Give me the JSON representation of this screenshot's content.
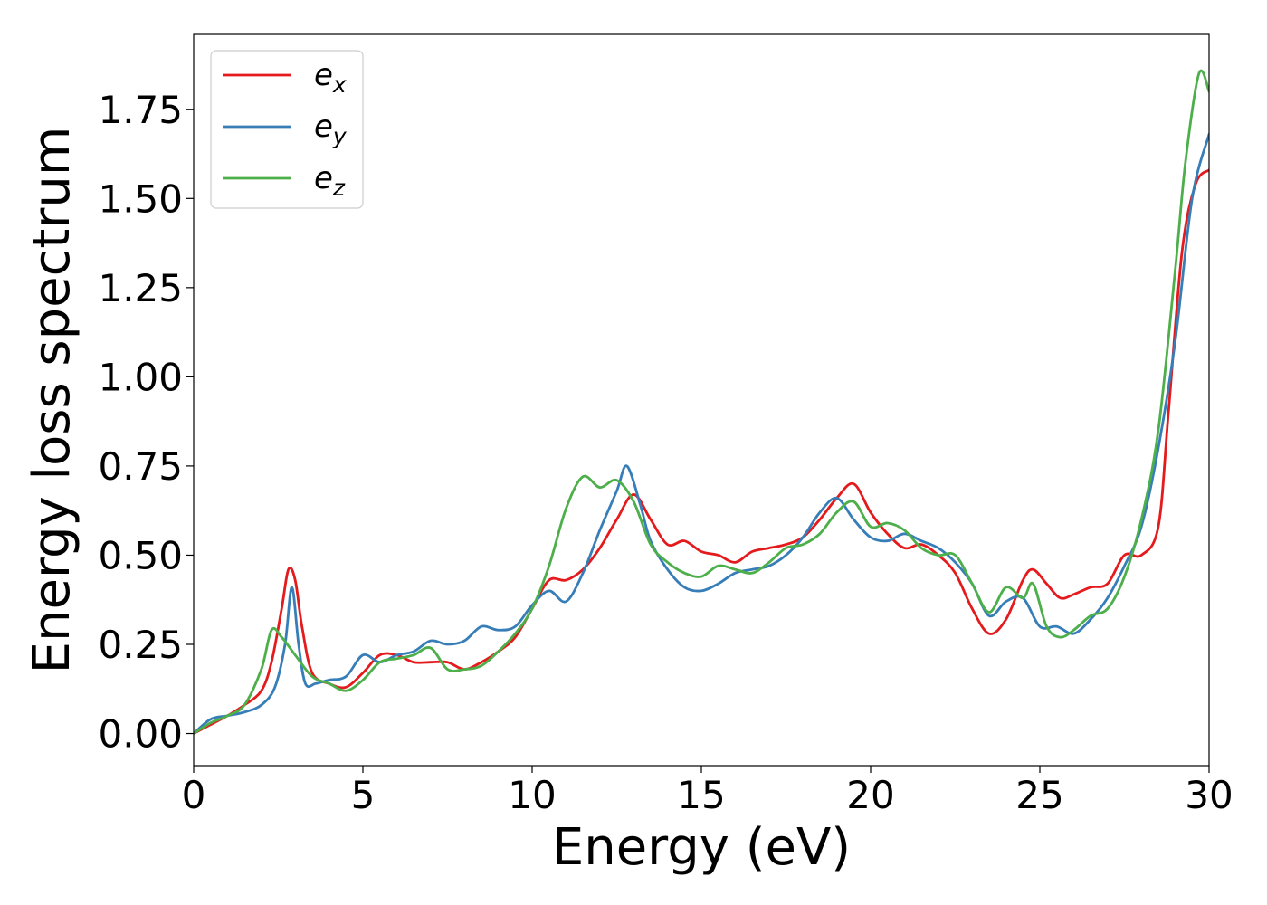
{
  "chart_data": {
    "type": "line",
    "xlabel": "Energy (eV)",
    "ylabel": "Energy loss spectrum",
    "xlim": [
      0,
      30
    ],
    "ylim": [
      -0.09,
      1.96
    ],
    "xticks": [
      0,
      5,
      10,
      15,
      20,
      25,
      30
    ],
    "xtick_labels": [
      "0",
      "5",
      "10",
      "15",
      "20",
      "25",
      "30"
    ],
    "yticks": [
      0,
      0.25,
      0.5,
      0.75,
      1.0,
      1.25,
      1.5,
      1.75
    ],
    "ytick_labels": [
      "0.00",
      "0.25",
      "0.50",
      "0.75",
      "1.00",
      "1.25",
      "1.50",
      "1.75"
    ],
    "grid": false,
    "legend_position": "top-left",
    "series": [
      {
        "name": "e_x",
        "legend_base": "e",
        "legend_sub": "x",
        "color": "#e41a1c",
        "x": [
          0,
          0.5,
          1,
          1.5,
          2,
          2.3,
          2.6,
          2.8,
          3.0,
          3.2,
          3.5,
          4,
          4.5,
          5,
          5.5,
          6,
          6.5,
          7,
          7.5,
          8,
          8.5,
          9,
          9.5,
          10,
          10.5,
          11,
          11.5,
          12,
          12.5,
          13,
          13.5,
          14,
          14.5,
          15,
          15.5,
          16,
          16.5,
          17,
          17.5,
          18,
          18.5,
          19,
          19.5,
          20,
          20.5,
          21,
          21.5,
          22,
          22.5,
          23,
          23.5,
          24,
          24.5,
          24.8,
          25.2,
          25.6,
          26,
          26.5,
          27,
          27.5,
          28,
          28.5,
          28.8,
          29.2,
          29.6,
          30
        ],
        "y": [
          0,
          0.025,
          0.05,
          0.08,
          0.12,
          0.2,
          0.35,
          0.46,
          0.43,
          0.3,
          0.17,
          0.14,
          0.13,
          0.17,
          0.22,
          0.22,
          0.2,
          0.2,
          0.2,
          0.18,
          0.2,
          0.23,
          0.27,
          0.35,
          0.43,
          0.43,
          0.46,
          0.52,
          0.6,
          0.67,
          0.6,
          0.53,
          0.54,
          0.51,
          0.5,
          0.48,
          0.51,
          0.52,
          0.53,
          0.55,
          0.6,
          0.66,
          0.7,
          0.62,
          0.56,
          0.52,
          0.53,
          0.5,
          0.45,
          0.35,
          0.28,
          0.32,
          0.43,
          0.46,
          0.42,
          0.38,
          0.39,
          0.41,
          0.42,
          0.5,
          0.5,
          0.58,
          0.9,
          1.35,
          1.54,
          1.58
        ]
      },
      {
        "name": "e_y",
        "legend_base": "e",
        "legend_sub": "y",
        "color": "#377eb8",
        "x": [
          0,
          0.5,
          1,
          1.5,
          2,
          2.4,
          2.7,
          2.9,
          3.1,
          3.3,
          3.6,
          4,
          4.5,
          5,
          5.5,
          6,
          6.5,
          7,
          7.5,
          8,
          8.5,
          9,
          9.5,
          10,
          10.5,
          11,
          11.5,
          12,
          12.5,
          12.8,
          13.2,
          13.5,
          14,
          14.5,
          15,
          15.5,
          16,
          16.5,
          17,
          17.5,
          18,
          18.5,
          19,
          19.5,
          20,
          20.5,
          21,
          21.5,
          22,
          22.5,
          23,
          23.5,
          24,
          24.5,
          25,
          25.5,
          26,
          26.5,
          27,
          27.5,
          28,
          28.5,
          29,
          29.5,
          30
        ],
        "y": [
          0,
          0.04,
          0.05,
          0.06,
          0.08,
          0.13,
          0.25,
          0.41,
          0.25,
          0.14,
          0.14,
          0.15,
          0.16,
          0.22,
          0.2,
          0.22,
          0.23,
          0.26,
          0.25,
          0.26,
          0.3,
          0.29,
          0.3,
          0.36,
          0.4,
          0.37,
          0.45,
          0.57,
          0.68,
          0.75,
          0.64,
          0.54,
          0.46,
          0.41,
          0.4,
          0.42,
          0.45,
          0.46,
          0.47,
          0.5,
          0.55,
          0.62,
          0.66,
          0.6,
          0.55,
          0.54,
          0.56,
          0.54,
          0.52,
          0.48,
          0.42,
          0.33,
          0.37,
          0.38,
          0.3,
          0.3,
          0.28,
          0.32,
          0.38,
          0.47,
          0.58,
          0.8,
          1.1,
          1.5,
          1.68
        ]
      },
      {
        "name": "e_z",
        "legend_base": "e",
        "legend_sub": "z",
        "color": "#4daf4a",
        "x": [
          0,
          0.5,
          1,
          1.5,
          2,
          2.3,
          2.6,
          3.0,
          3.5,
          4,
          4.5,
          5,
          5.5,
          6,
          6.5,
          7,
          7.5,
          8,
          8.5,
          9,
          9.5,
          10,
          10.5,
          11,
          11.5,
          12,
          12.5,
          13,
          13.5,
          14,
          14.5,
          15,
          15.5,
          16,
          16.5,
          17,
          17.5,
          18,
          18.5,
          19,
          19.5,
          20,
          20.5,
          21,
          21.5,
          22,
          22.5,
          23,
          23.5,
          24,
          24.5,
          24.8,
          25.2,
          25.6,
          26,
          26.5,
          27,
          27.5,
          28,
          28.5,
          29,
          29.3,
          29.7,
          30
        ],
        "y": [
          0,
          0.03,
          0.05,
          0.08,
          0.18,
          0.29,
          0.27,
          0.22,
          0.16,
          0.14,
          0.12,
          0.15,
          0.2,
          0.21,
          0.22,
          0.24,
          0.18,
          0.18,
          0.19,
          0.23,
          0.28,
          0.35,
          0.47,
          0.63,
          0.72,
          0.69,
          0.71,
          0.65,
          0.53,
          0.48,
          0.45,
          0.44,
          0.47,
          0.46,
          0.45,
          0.48,
          0.52,
          0.53,
          0.56,
          0.62,
          0.65,
          0.58,
          0.59,
          0.57,
          0.52,
          0.5,
          0.5,
          0.42,
          0.34,
          0.41,
          0.38,
          0.42,
          0.3,
          0.27,
          0.29,
          0.33,
          0.35,
          0.44,
          0.6,
          0.85,
          1.3,
          1.6,
          1.85,
          1.8
        ]
      }
    ]
  }
}
